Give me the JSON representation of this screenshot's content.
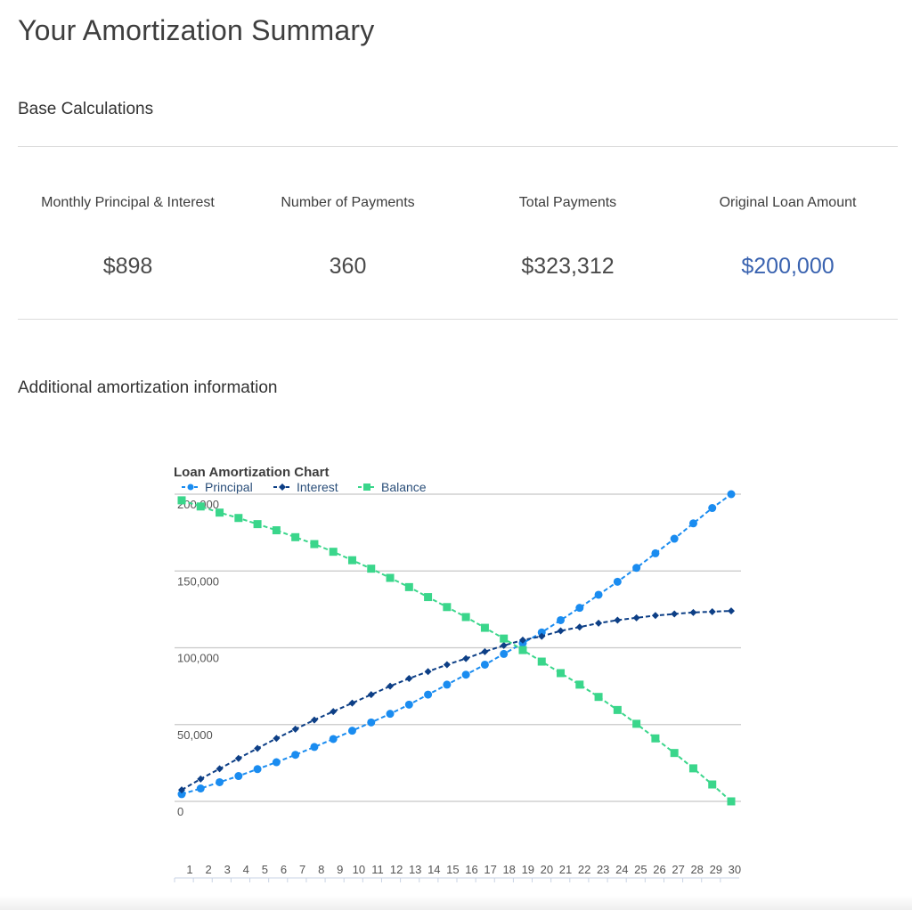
{
  "page": {
    "title": "Your Amortization Summary",
    "base_section_title": "Base Calculations",
    "additional_section_title": "Additional amortization information"
  },
  "metrics": [
    {
      "label": "Monthly Principal & Interest",
      "value": "$898",
      "accent": false
    },
    {
      "label": "Number of Payments",
      "value": "360",
      "accent": false
    },
    {
      "label": "Total Payments",
      "value": "$323,312",
      "accent": false
    },
    {
      "label": "Original Loan Amount",
      "value": "$200,000",
      "accent": true
    }
  ],
  "colors": {
    "accent": "#3a63b0",
    "principal": "#1a8cf0",
    "interest": "#0d3f86",
    "balance": "#3ad68b"
  },
  "chart_data": {
    "type": "line",
    "title": "Loan Amortization Chart",
    "xlabel": "",
    "ylabel": "",
    "x": [
      1,
      2,
      3,
      4,
      5,
      6,
      7,
      8,
      9,
      10,
      11,
      12,
      13,
      14,
      15,
      16,
      17,
      18,
      19,
      20,
      21,
      22,
      23,
      24,
      25,
      26,
      27,
      28,
      29,
      30
    ],
    "x_tick_labels": [
      "1",
      "2",
      "3",
      "4",
      "5",
      "6",
      "7",
      "8",
      "9",
      "10",
      "11",
      "12",
      "13",
      "14",
      "15",
      "16",
      "17",
      "18",
      "19",
      "20",
      "21",
      "22",
      "23",
      "24",
      "25",
      "26",
      "27",
      "28",
      "29",
      "30"
    ],
    "y_tick_labels": [
      "0",
      "50,000",
      "100,000",
      "150,000",
      "200,000"
    ],
    "ylim": [
      0,
      200000
    ],
    "grid": true,
    "legend_position": "top-left",
    "series": [
      {
        "name": "Principal",
        "marker": "circle",
        "color": "#1a8cf0",
        "values": [
          4700,
          8400,
          12500,
          16500,
          21000,
          25500,
          30300,
          35400,
          40600,
          46000,
          51400,
          57000,
          63000,
          69500,
          76000,
          82500,
          89000,
          96000,
          103000,
          110000,
          118000,
          126000,
          134500,
          143000,
          152000,
          161500,
          171000,
          181000,
          191000,
          200000
        ]
      },
      {
        "name": "Interest",
        "marker": "diamond",
        "color": "#0d3f86",
        "values": [
          7500,
          14600,
          21200,
          28000,
          34500,
          41000,
          47000,
          53000,
          58500,
          64000,
          69500,
          75000,
          80000,
          84500,
          89000,
          93000,
          97500,
          101500,
          105000,
          107500,
          111000,
          113500,
          116000,
          118000,
          119500,
          121000,
          122000,
          123000,
          123500,
          124000
        ]
      },
      {
        "name": "Balance",
        "marker": "square",
        "color": "#3ad68b",
        "values": [
          196000,
          192000,
          188000,
          184500,
          180500,
          176500,
          172000,
          167500,
          162500,
          157000,
          151500,
          145500,
          139500,
          133000,
          126500,
          120000,
          113000,
          106000,
          98500,
          91000,
          83500,
          76000,
          68000,
          59500,
          50500,
          41000,
          31500,
          21500,
          11000,
          0
        ]
      }
    ]
  }
}
